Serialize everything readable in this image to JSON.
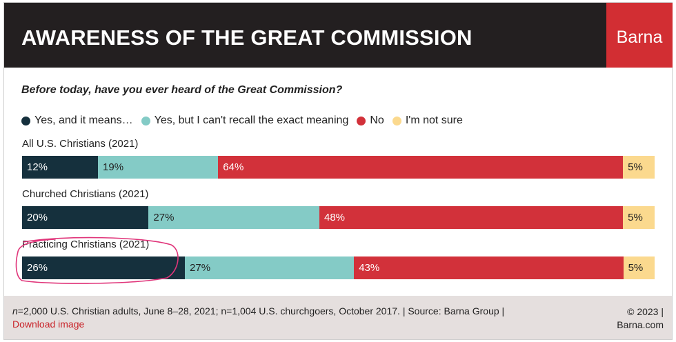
{
  "header": {
    "title": "AWARENESS OF THE GREAT COMMISSION",
    "brand": "Barna",
    "title_bg": "#231f20",
    "brand_bg": "#d22e33"
  },
  "question": "Before today, have you ever heard of the Great Commission?",
  "chart_data": {
    "type": "bar",
    "orientation": "horizontal-stacked-100",
    "title": "AWARENESS OF THE GREAT COMMISSION",
    "subtitle": "Before today, have you ever heard of the Great Commission?",
    "legend_position": "top-left",
    "categories": [
      "All U.S. Christians (2021)",
      "Churched Christians (2021)",
      "Practicing Christians (2021)"
    ],
    "series": [
      {
        "name": "Yes, and it means…",
        "color": "#15303d",
        "label_color": "#ffffff",
        "values": [
          12,
          20,
          26
        ],
        "labels": [
          "12%",
          "20%",
          "26%"
        ]
      },
      {
        "name": "Yes, but I can't recall the exact meaning",
        "color": "#84cbc6",
        "label_color": "#222222",
        "values": [
          19,
          27,
          27
        ],
        "labels": [
          "19%",
          "27%",
          "27%"
        ]
      },
      {
        "name": "No",
        "color": "#d2313a",
        "label_color": "#ffffff",
        "values": [
          64,
          48,
          43
        ],
        "labels": [
          "64%",
          "48%",
          "43%"
        ]
      },
      {
        "name": "I'm not sure",
        "color": "#fbd98e",
        "label_color": "#222222",
        "values": [
          5,
          5,
          5
        ],
        "labels": [
          "5%",
          "5%",
          "5%"
        ]
      }
    ]
  },
  "annotation": {
    "color": "#e0357a",
    "target": "Practicing Christians (2021)"
  },
  "footer": {
    "n_symbol": "n",
    "note": "=2,000 U.S. Christian adults, June 8–28, 2021; n=1,004 U.S. churchgoers, October 2017. | Source: Barna Group |",
    "download_label": "Download image",
    "copyright_line1": "© 2023 |",
    "copyright_line2": "Barna.com",
    "bg": "#e5dfde"
  }
}
